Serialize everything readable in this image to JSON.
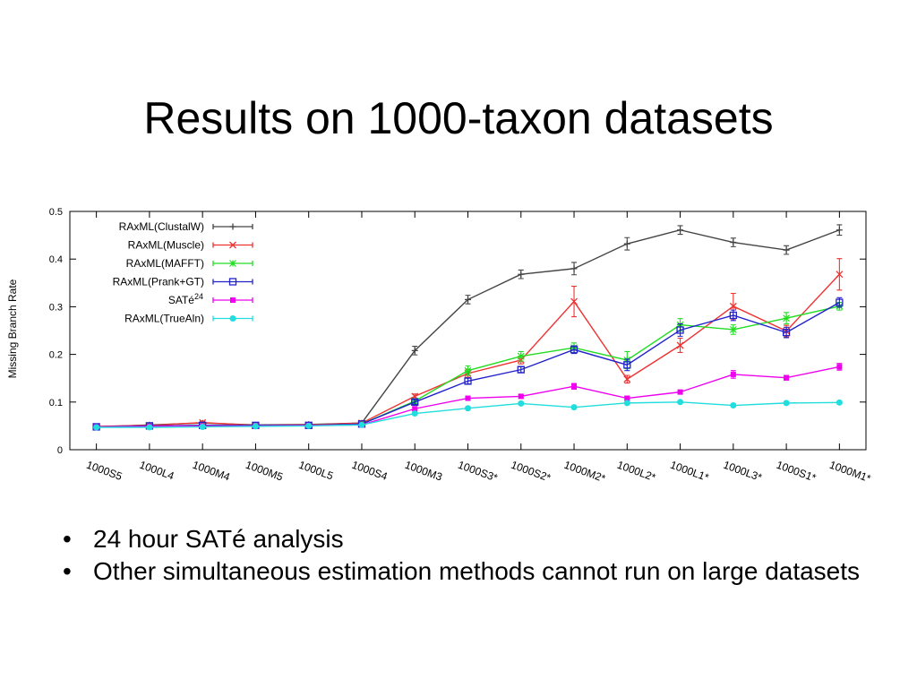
{
  "slide": {
    "title": "Results on 1000-taxon datasets",
    "bullets": [
      "24 hour SATé analysis",
      "Other simultaneous estimation methods cannot run on large datasets"
    ]
  },
  "chart_data": {
    "type": "line",
    "title": "",
    "xlabel": "",
    "ylabel": "Missing Branch Rate",
    "ylim": [
      0,
      0.5
    ],
    "yticks": [
      0,
      0.1,
      0.2,
      0.3,
      0.4,
      0.5
    ],
    "ytick_labels": [
      "0",
      "0.1",
      "0.2",
      "0.3",
      "0.4",
      "0.5"
    ],
    "grid": false,
    "legend_position": "top-left",
    "categories": [
      "1000S5",
      "1000L4",
      "1000M4",
      "1000M5",
      "1000L5",
      "1000S4",
      "1000M3",
      "1000S3*",
      "1000S2*",
      "1000M2*",
      "1000L2*",
      "1000L1*",
      "1000L3*",
      "1000S1*",
      "1000M1*"
    ],
    "series": [
      {
        "name": "RAxML(ClustalW)",
        "legend_label": "RAxML(ClustalW)",
        "color": "#444444",
        "marker": "plus",
        "values": [
          0.048,
          0.052,
          0.056,
          0.052,
          0.053,
          0.056,
          0.208,
          0.315,
          0.368,
          0.38,
          0.432,
          0.461,
          0.435,
          0.419,
          0.461
        ],
        "errors": [
          0.003,
          0.003,
          0.003,
          0.003,
          0.003,
          0.003,
          0.009,
          0.009,
          0.009,
          0.013,
          0.013,
          0.009,
          0.009,
          0.009,
          0.011
        ]
      },
      {
        "name": "RAxML(Muscle)",
        "legend_label": "RAxML(Muscle)",
        "color": "#ee3333",
        "marker": "x",
        "values": [
          0.049,
          0.051,
          0.057,
          0.051,
          0.052,
          0.056,
          0.112,
          0.16,
          0.188,
          0.311,
          0.148,
          0.219,
          0.301,
          0.249,
          0.368
        ],
        "errors": [
          0.003,
          0.003,
          0.003,
          0.003,
          0.003,
          0.003,
          0.005,
          0.008,
          0.008,
          0.032,
          0.008,
          0.015,
          0.027,
          0.012,
          0.033
        ]
      },
      {
        "name": "RAxML(MAFFT)",
        "legend_label": "RAxML(MAFFT)",
        "color": "#22dd22",
        "marker": "star",
        "values": [
          0.048,
          0.05,
          0.051,
          0.051,
          0.051,
          0.054,
          0.102,
          0.166,
          0.196,
          0.214,
          0.188,
          0.262,
          0.252,
          0.276,
          0.301
        ],
        "errors": [
          0.003,
          0.003,
          0.003,
          0.003,
          0.003,
          0.003,
          0.005,
          0.01,
          0.01,
          0.01,
          0.018,
          0.013,
          0.01,
          0.012,
          0.008
        ]
      },
      {
        "name": "RAxML(Prank+GT)",
        "legend_label": "RAxML(Prank+GT)",
        "color": "#2222cc",
        "marker": "square",
        "values": [
          0.048,
          0.05,
          0.051,
          0.051,
          0.051,
          0.054,
          0.1,
          0.144,
          0.168,
          0.21,
          0.178,
          0.251,
          0.282,
          0.246,
          0.309
        ],
        "errors": [
          0.003,
          0.003,
          0.003,
          0.003,
          0.003,
          0.003,
          0.005,
          0.006,
          0.006,
          0.008,
          0.012,
          0.013,
          0.011,
          0.011,
          0.01
        ]
      },
      {
        "name": "SATé24",
        "legend_label": "SATé",
        "legend_superscript": "24",
        "color": "#ee00ee",
        "marker": "filled-square",
        "values": [
          0.048,
          0.049,
          0.05,
          0.05,
          0.051,
          0.052,
          0.086,
          0.108,
          0.112,
          0.133,
          0.108,
          0.121,
          0.158,
          0.151,
          0.174
        ],
        "errors": [
          0.002,
          0.002,
          0.002,
          0.002,
          0.002,
          0.002,
          0.004,
          0.004,
          0.004,
          0.006,
          0.004,
          0.004,
          0.008,
          0.005,
          0.007
        ]
      },
      {
        "name": "RAxML(TrueAln)",
        "legend_label": "RAxML(TrueAln)",
        "color": "#22dddd",
        "marker": "circle",
        "values": [
          0.047,
          0.047,
          0.048,
          0.049,
          0.05,
          0.052,
          0.076,
          0.087,
          0.097,
          0.089,
          0.098,
          0.1,
          0.093,
          0.098,
          0.099
        ],
        "errors": [
          0.002,
          0.002,
          0.002,
          0.002,
          0.002,
          0.002,
          0.003,
          0.003,
          0.003,
          0.003,
          0.003,
          0.003,
          0.003,
          0.003,
          0.003
        ]
      }
    ]
  }
}
